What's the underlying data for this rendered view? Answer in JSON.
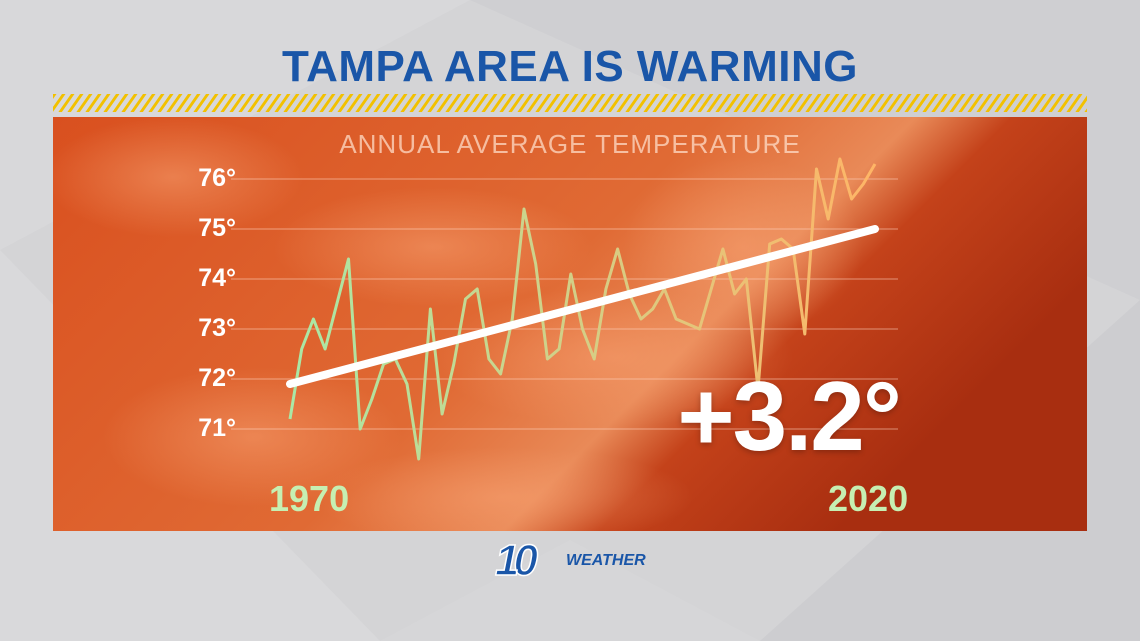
{
  "title": "TAMPA AREA IS WARMING",
  "colors": {
    "title": "#1a56a8",
    "panel": "#d2441a",
    "line_start": "#a9e8a6",
    "line_end": "#ffb566",
    "trend": "#ffffff",
    "year_labels": "#c6efb2",
    "stripe": "#f2c100"
  },
  "chart_data": {
    "type": "line",
    "title": "ANNUAL AVERAGE TEMPERATURE",
    "xlabel": "",
    "ylabel": "",
    "xlim": [
      1970,
      2020
    ],
    "ylim": [
      70.4,
      76.6
    ],
    "yticks": [
      76,
      75,
      74,
      73,
      72,
      71
    ],
    "ytick_labels": [
      "76°",
      "75°",
      "74°",
      "73°",
      "72°",
      "71°"
    ],
    "x_labels": [
      "1970",
      "2020"
    ],
    "grid": true,
    "series": [
      {
        "type": "line",
        "x": [
          1970,
          1971,
          1972,
          1973,
          1974,
          1975,
          1976,
          1977,
          1978,
          1979,
          1980,
          1981,
          1982,
          1983,
          1984,
          1985,
          1986,
          1987,
          1988,
          1989,
          1990,
          1991,
          1992,
          1993,
          1994,
          1995,
          1996,
          1997,
          1998,
          1999,
          2000,
          2001,
          2002,
          2003,
          2004,
          2005,
          2006,
          2007,
          2008,
          2009,
          2010,
          2011,
          2012,
          2013,
          2014,
          2015,
          2016,
          2017,
          2018,
          2019,
          2020
        ],
        "values": [
          71.2,
          72.6,
          73.2,
          72.6,
          73.5,
          74.4,
          71.0,
          71.6,
          72.3,
          72.4,
          71.9,
          70.4,
          73.4,
          71.3,
          72.3,
          73.6,
          73.8,
          72.4,
          72.1,
          73.2,
          75.4,
          74.3,
          72.4,
          72.6,
          74.1,
          73.0,
          72.4,
          73.8,
          74.6,
          73.7,
          73.2,
          73.4,
          73.8,
          73.2,
          73.1,
          73.0,
          73.8,
          74.6,
          73.7,
          74.0,
          71.8,
          74.7,
          74.8,
          74.6,
          72.9,
          76.2,
          75.2,
          76.4,
          75.6,
          75.9,
          76.3
        ]
      },
      {
        "type": "trendline",
        "x": [
          1970,
          2020
        ],
        "values": [
          71.9,
          75.0
        ]
      }
    ],
    "annotations": [
      "+3.2°"
    ]
  },
  "logo": {
    "text": "WEATHER",
    "mark": "10"
  }
}
